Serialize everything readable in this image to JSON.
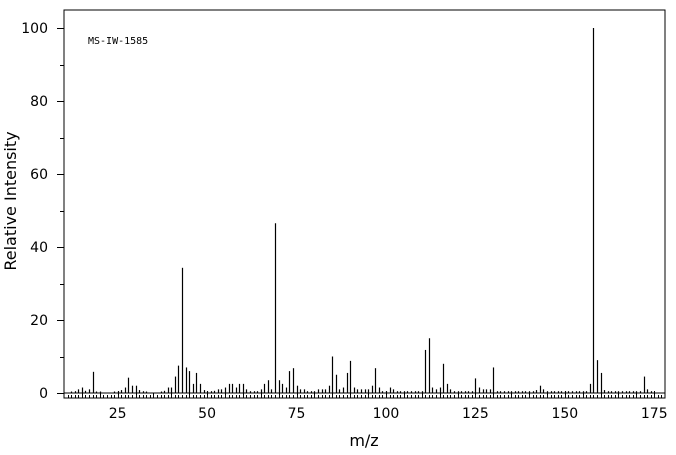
{
  "chart_data": {
    "type": "bar",
    "annotation": "MS-IW-1585",
    "xlabel": "m/z",
    "ylabel": "Relative Intensity",
    "xlim": [
      10,
      178
    ],
    "ylim": [
      0,
      100
    ],
    "xticks": [
      "25",
      "50",
      "75",
      "100",
      "125",
      "150",
      "175"
    ],
    "yticks": [
      "0",
      "20",
      "40",
      "60",
      "80",
      "100"
    ],
    "grid": false,
    "peaks": [
      {
        "mz": 12,
        "i": 0.4
      },
      {
        "mz": 13,
        "i": 0.5
      },
      {
        "mz": 14,
        "i": 1.0
      },
      {
        "mz": 15,
        "i": 1.5
      },
      {
        "mz": 16,
        "i": 0.6
      },
      {
        "mz": 17,
        "i": 1.0
      },
      {
        "mz": 18,
        "i": 5.8
      },
      {
        "mz": 19,
        "i": 0.4
      },
      {
        "mz": 20,
        "i": 0.4
      },
      {
        "mz": 24,
        "i": 0.3
      },
      {
        "mz": 25,
        "i": 0.5
      },
      {
        "mz": 26,
        "i": 0.8
      },
      {
        "mz": 27,
        "i": 1.5
      },
      {
        "mz": 28,
        "i": 4.2
      },
      {
        "mz": 29,
        "i": 2.0
      },
      {
        "mz": 30,
        "i": 2.0
      },
      {
        "mz": 31,
        "i": 0.8
      },
      {
        "mz": 32,
        "i": 0.5
      },
      {
        "mz": 33,
        "i": 0.4
      },
      {
        "mz": 37,
        "i": 0.4
      },
      {
        "mz": 38,
        "i": 0.6
      },
      {
        "mz": 39,
        "i": 1.5
      },
      {
        "mz": 40,
        "i": 1.5
      },
      {
        "mz": 41,
        "i": 4.5
      },
      {
        "mz": 42,
        "i": 7.5
      },
      {
        "mz": 43,
        "i": 34.3
      },
      {
        "mz": 44,
        "i": 7.0
      },
      {
        "mz": 45,
        "i": 6.0
      },
      {
        "mz": 46,
        "i": 2.5
      },
      {
        "mz": 47,
        "i": 5.5
      },
      {
        "mz": 48,
        "i": 2.5
      },
      {
        "mz": 49,
        "i": 0.8
      },
      {
        "mz": 50,
        "i": 0.5
      },
      {
        "mz": 51,
        "i": 0.5
      },
      {
        "mz": 52,
        "i": 0.6
      },
      {
        "mz": 53,
        "i": 1.0
      },
      {
        "mz": 54,
        "i": 1.0
      },
      {
        "mz": 55,
        "i": 1.5
      },
      {
        "mz": 56,
        "i": 2.5
      },
      {
        "mz": 57,
        "i": 2.5
      },
      {
        "mz": 58,
        "i": 1.5
      },
      {
        "mz": 59,
        "i": 2.5
      },
      {
        "mz": 60,
        "i": 2.5
      },
      {
        "mz": 61,
        "i": 1.0
      },
      {
        "mz": 62,
        "i": 0.5
      },
      {
        "mz": 63,
        "i": 0.5
      },
      {
        "mz": 64,
        "i": 0.5
      },
      {
        "mz": 65,
        "i": 1.0
      },
      {
        "mz": 66,
        "i": 2.5
      },
      {
        "mz": 67,
        "i": 3.5
      },
      {
        "mz": 68,
        "i": 1.0
      },
      {
        "mz": 69,
        "i": 46.5
      },
      {
        "mz": 70,
        "i": 3.5
      },
      {
        "mz": 71,
        "i": 2.5
      },
      {
        "mz": 72,
        "i": 1.5
      },
      {
        "mz": 73,
        "i": 6.0
      },
      {
        "mz": 74,
        "i": 6.8
      },
      {
        "mz": 75,
        "i": 2.0
      },
      {
        "mz": 76,
        "i": 1.0
      },
      {
        "mz": 77,
        "i": 1.0
      },
      {
        "mz": 78,
        "i": 0.5
      },
      {
        "mz": 79,
        "i": 0.5
      },
      {
        "mz": 80,
        "i": 0.5
      },
      {
        "mz": 81,
        "i": 1.0
      },
      {
        "mz": 82,
        "i": 1.0
      },
      {
        "mz": 83,
        "i": 1.0
      },
      {
        "mz": 84,
        "i": 2.0
      },
      {
        "mz": 85,
        "i": 10.0
      },
      {
        "mz": 86,
        "i": 5.0
      },
      {
        "mz": 87,
        "i": 1.0
      },
      {
        "mz": 88,
        "i": 1.5
      },
      {
        "mz": 89,
        "i": 5.5
      },
      {
        "mz": 90,
        "i": 8.8
      },
      {
        "mz": 91,
        "i": 1.5
      },
      {
        "mz": 92,
        "i": 1.0
      },
      {
        "mz": 93,
        "i": 1.0
      },
      {
        "mz": 94,
        "i": 1.0
      },
      {
        "mz": 95,
        "i": 1.0
      },
      {
        "mz": 96,
        "i": 2.0
      },
      {
        "mz": 97,
        "i": 6.8
      },
      {
        "mz": 98,
        "i": 1.5
      },
      {
        "mz": 99,
        "i": 0.5
      },
      {
        "mz": 100,
        "i": 0.5
      },
      {
        "mz": 101,
        "i": 1.5
      },
      {
        "mz": 102,
        "i": 1.0
      },
      {
        "mz": 103,
        "i": 0.5
      },
      {
        "mz": 104,
        "i": 0.5
      },
      {
        "mz": 105,
        "i": 0.5
      },
      {
        "mz": 106,
        "i": 0.5
      },
      {
        "mz": 107,
        "i": 0.5
      },
      {
        "mz": 108,
        "i": 0.5
      },
      {
        "mz": 109,
        "i": 0.5
      },
      {
        "mz": 110,
        "i": 0.5
      },
      {
        "mz": 111,
        "i": 11.8
      },
      {
        "mz": 112,
        "i": 15.0
      },
      {
        "mz": 113,
        "i": 1.5
      },
      {
        "mz": 114,
        "i": 1.0
      },
      {
        "mz": 115,
        "i": 1.5
      },
      {
        "mz": 116,
        "i": 8.0
      },
      {
        "mz": 117,
        "i": 2.5
      },
      {
        "mz": 118,
        "i": 1.0
      },
      {
        "mz": 119,
        "i": 0.5
      },
      {
        "mz": 120,
        "i": 0.5
      },
      {
        "mz": 121,
        "i": 0.5
      },
      {
        "mz": 122,
        "i": 0.5
      },
      {
        "mz": 123,
        "i": 0.5
      },
      {
        "mz": 124,
        "i": 0.5
      },
      {
        "mz": 125,
        "i": 4.0
      },
      {
        "mz": 126,
        "i": 1.5
      },
      {
        "mz": 127,
        "i": 1.0
      },
      {
        "mz": 128,
        "i": 1.0
      },
      {
        "mz": 129,
        "i": 1.0
      },
      {
        "mz": 130,
        "i": 7.0
      },
      {
        "mz": 131,
        "i": 0.5
      },
      {
        "mz": 132,
        "i": 0.5
      },
      {
        "mz": 133,
        "i": 0.5
      },
      {
        "mz": 134,
        "i": 0.5
      },
      {
        "mz": 135,
        "i": 0.5
      },
      {
        "mz": 136,
        "i": 0.5
      },
      {
        "mz": 137,
        "i": 0.5
      },
      {
        "mz": 138,
        "i": 0.5
      },
      {
        "mz": 139,
        "i": 0.5
      },
      {
        "mz": 140,
        "i": 0.5
      },
      {
        "mz": 141,
        "i": 0.5
      },
      {
        "mz": 142,
        "i": 0.8
      },
      {
        "mz": 143,
        "i": 2.0
      },
      {
        "mz": 144,
        "i": 1.0
      },
      {
        "mz": 145,
        "i": 0.5
      },
      {
        "mz": 146,
        "i": 0.5
      },
      {
        "mz": 147,
        "i": 0.5
      },
      {
        "mz": 148,
        "i": 0.5
      },
      {
        "mz": 149,
        "i": 0.5
      },
      {
        "mz": 150,
        "i": 0.5
      },
      {
        "mz": 151,
        "i": 0.5
      },
      {
        "mz": 152,
        "i": 0.5
      },
      {
        "mz": 153,
        "i": 0.5
      },
      {
        "mz": 154,
        "i": 0.5
      },
      {
        "mz": 155,
        "i": 0.5
      },
      {
        "mz": 156,
        "i": 0.5
      },
      {
        "mz": 157,
        "i": 2.5
      },
      {
        "mz": 158,
        "i": 100.0
      },
      {
        "mz": 159,
        "i": 9.0
      },
      {
        "mz": 160,
        "i": 5.5
      },
      {
        "mz": 161,
        "i": 0.8
      },
      {
        "mz": 162,
        "i": 0.5
      },
      {
        "mz": 163,
        "i": 0.5
      },
      {
        "mz": 164,
        "i": 0.5
      },
      {
        "mz": 165,
        "i": 0.5
      },
      {
        "mz": 166,
        "i": 0.5
      },
      {
        "mz": 167,
        "i": 0.5
      },
      {
        "mz": 168,
        "i": 0.5
      },
      {
        "mz": 169,
        "i": 0.5
      },
      {
        "mz": 170,
        "i": 0.5
      },
      {
        "mz": 171,
        "i": 0.5
      },
      {
        "mz": 172,
        "i": 4.5
      },
      {
        "mz": 173,
        "i": 1.0
      },
      {
        "mz": 174,
        "i": 0.5
      }
    ]
  }
}
